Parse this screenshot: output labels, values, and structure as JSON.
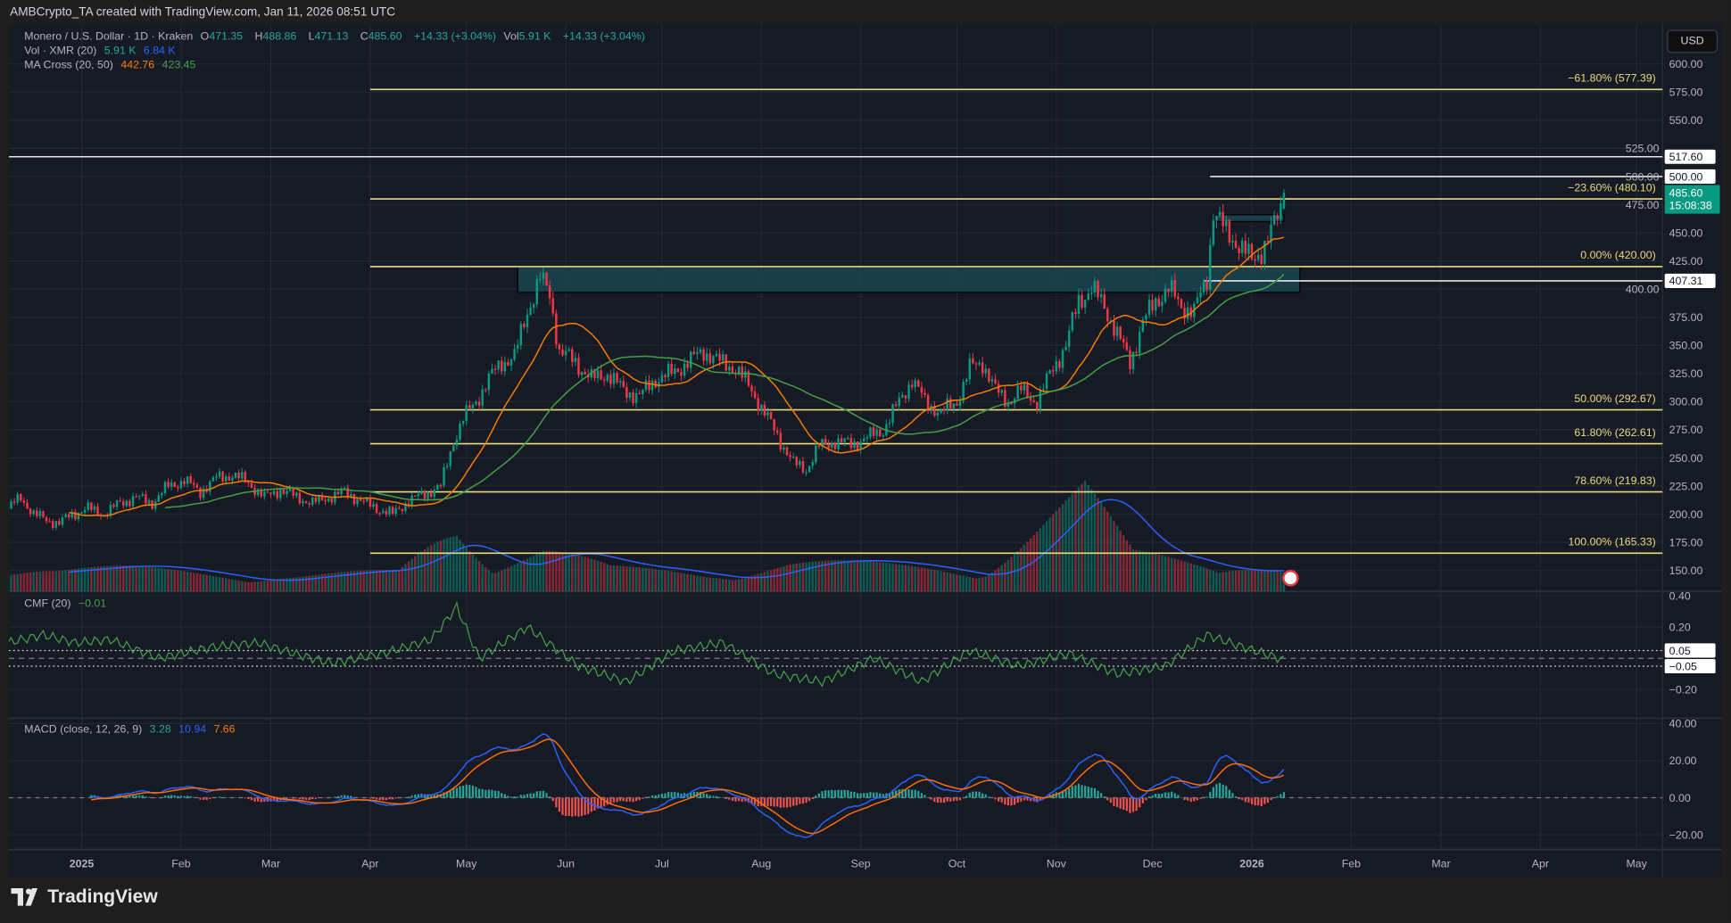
{
  "header": {
    "title": "AMBCrypto_TA created with TradingView.com, Jan 11, 2026 08:51 UTC"
  },
  "legend": {
    "symbol": "Monero / U.S. Dollar · 1D · Kraken",
    "o_label": "O",
    "o": "471.35",
    "h_label": "H",
    "h": "488.86",
    "l_label": "L",
    "l": "471.13",
    "c_label": "C",
    "c": "485.60",
    "change": "+14.33 (+3.04%)",
    "vol_label": "Vol",
    "vol": "5.91 K",
    "vol_change": "+14.33 (+3.04%)",
    "vol_ind": "Vol · XMR (20)",
    "vol_ind_v1": "5.91 K",
    "vol_ind_v2": "6.84 K",
    "ma": "MA Cross (20, 50)",
    "ma_v1": "442.76",
    "ma_v2": "423.45",
    "cmf": "CMF (20)",
    "cmf_v": "−0.01",
    "macd": "MACD (close, 12, 26, 9)",
    "macd_v1": "3.28",
    "macd_v2": "10.94",
    "macd_v3": "7.66"
  },
  "currency_button": "USD",
  "footer": {
    "brand": "TradingView"
  },
  "colors": {
    "up": "#089981",
    "down": "#f23645",
    "ma_fast": "#f57c00",
    "ma_slow": "#43a047",
    "vol_ma": "#2962ff",
    "fib": "#e9d97f",
    "zone": "#1b4a55",
    "cmf": "#43a047",
    "macd": "#2962ff",
    "signal": "#ff6d00",
    "hist_up": "#26a69a",
    "hist_down": "#ef5350"
  },
  "chart_data": {
    "type": "candlestick",
    "price_axis": {
      "range": [
        140,
        612
      ],
      "ticks": [
        "600.00",
        "575.00",
        "550.00",
        "525.00",
        "500.00",
        "475.00",
        "450.00",
        "425.00",
        "400.00",
        "375.00",
        "350.00",
        "325.00",
        "300.00",
        "275.00",
        "250.00",
        "225.00",
        "200.00",
        "175.00",
        "150.00"
      ]
    },
    "x_ticks": [
      {
        "label": "2025",
        "date": "2025-01-01",
        "bold": true
      },
      {
        "label": "Feb",
        "date": "2025-02-01"
      },
      {
        "label": "Mar",
        "date": "2025-03-01"
      },
      {
        "label": "Apr",
        "date": "2025-04-01"
      },
      {
        "label": "May",
        "date": "2025-05-01"
      },
      {
        "label": "Jun",
        "date": "2025-06-01"
      },
      {
        "label": "Jul",
        "date": "2025-07-01"
      },
      {
        "label": "Aug",
        "date": "2025-08-01"
      },
      {
        "label": "Sep",
        "date": "2025-09-01"
      },
      {
        "label": "Oct",
        "date": "2025-10-01"
      },
      {
        "label": "Nov",
        "date": "2025-11-01"
      },
      {
        "label": "Dec",
        "date": "2025-12-01"
      },
      {
        "label": "2026",
        "date": "2026-01-01",
        "bold": true
      },
      {
        "label": "Feb",
        "date": "2026-02-01"
      },
      {
        "label": "Mar",
        "date": "2026-03-01"
      },
      {
        "label": "Apr",
        "date": "2026-04-01"
      },
      {
        "label": "May",
        "date": "2026-05-01"
      }
    ],
    "close_path": [
      [
        "2024-12-09",
        205
      ],
      [
        "2024-12-13",
        215
      ],
      [
        "2024-12-17",
        200
      ],
      [
        "2024-12-21",
        195
      ],
      [
        "2024-12-25",
        192
      ],
      [
        "2024-12-29",
        200
      ],
      [
        "2025-01-03",
        205
      ],
      [
        "2025-01-08",
        200
      ],
      [
        "2025-01-13",
        210
      ],
      [
        "2025-01-18",
        215
      ],
      [
        "2025-01-23",
        210
      ],
      [
        "2025-01-28",
        225
      ],
      [
        "2025-02-02",
        230
      ],
      [
        "2025-02-07",
        220
      ],
      [
        "2025-02-12",
        232
      ],
      [
        "2025-02-17",
        235
      ],
      [
        "2025-02-22",
        228
      ],
      [
        "2025-02-27",
        215
      ],
      [
        "2025-03-04",
        222
      ],
      [
        "2025-03-09",
        215
      ],
      [
        "2025-03-14",
        210
      ],
      [
        "2025-03-19",
        215
      ],
      [
        "2025-03-24",
        220
      ],
      [
        "2025-03-29",
        212
      ],
      [
        "2025-04-03",
        205
      ],
      [
        "2025-04-08",
        200
      ],
      [
        "2025-04-13",
        212
      ],
      [
        "2025-04-18",
        218
      ],
      [
        "2025-04-23",
        225
      ],
      [
        "2025-04-27",
        265
      ],
      [
        "2025-04-30",
        285
      ],
      [
        "2025-05-04",
        300
      ],
      [
        "2025-05-08",
        320
      ],
      [
        "2025-05-12",
        335
      ],
      [
        "2025-05-16",
        340
      ],
      [
        "2025-05-20",
        380
      ],
      [
        "2025-05-24",
        410
      ],
      [
        "2025-05-27",
        395
      ],
      [
        "2025-05-30",
        345
      ],
      [
        "2025-06-04",
        335
      ],
      [
        "2025-06-09",
        320
      ],
      [
        "2025-06-14",
        325
      ],
      [
        "2025-06-19",
        310
      ],
      [
        "2025-06-24",
        305
      ],
      [
        "2025-06-29",
        320
      ],
      [
        "2025-07-04",
        325
      ],
      [
        "2025-07-09",
        335
      ],
      [
        "2025-07-14",
        345
      ],
      [
        "2025-07-19",
        335
      ],
      [
        "2025-07-24",
        330
      ],
      [
        "2025-07-29",
        310
      ],
      [
        "2025-08-03",
        285
      ],
      [
        "2025-08-07",
        265
      ],
      [
        "2025-08-11",
        245
      ],
      [
        "2025-08-15",
        240
      ],
      [
        "2025-08-19",
        260
      ],
      [
        "2025-08-24",
        265
      ],
      [
        "2025-08-29",
        262
      ],
      [
        "2025-09-03",
        268
      ],
      [
        "2025-09-08",
        275
      ],
      [
        "2025-09-13",
        300
      ],
      [
        "2025-09-17",
        320
      ],
      [
        "2025-09-21",
        300
      ],
      [
        "2025-09-26",
        290
      ],
      [
        "2025-10-01",
        300
      ],
      [
        "2025-10-05",
        330
      ],
      [
        "2025-10-09",
        335
      ],
      [
        "2025-10-13",
        310
      ],
      [
        "2025-10-17",
        300
      ],
      [
        "2025-10-21",
        310
      ],
      [
        "2025-10-26",
        300
      ],
      [
        "2025-10-31",
        330
      ],
      [
        "2025-11-04",
        350
      ],
      [
        "2025-11-08",
        390
      ],
      [
        "2025-11-12",
        400
      ],
      [
        "2025-11-16",
        385
      ],
      [
        "2025-11-20",
        360
      ],
      [
        "2025-11-24",
        335
      ],
      [
        "2025-11-28",
        370
      ],
      [
        "2025-12-02",
        390
      ],
      [
        "2025-12-06",
        400
      ],
      [
        "2025-12-10",
        385
      ],
      [
        "2025-12-14",
        380
      ],
      [
        "2025-12-18",
        410
      ],
      [
        "2025-12-20",
        470
      ],
      [
        "2025-12-24",
        450
      ],
      [
        "2025-12-28",
        440
      ],
      [
        "2026-01-01",
        425
      ],
      [
        "2026-01-04",
        435
      ],
      [
        "2026-01-07",
        450
      ],
      [
        "2026-01-10",
        471.35
      ],
      [
        "2026-01-11",
        485.6
      ]
    ],
    "last_candle": {
      "open": 471.35,
      "high": 488.86,
      "low": 471.13,
      "close": 485.6
    },
    "volume_path_k": [
      [
        "2024-12-09",
        10
      ],
      [
        "2024-12-25",
        7
      ],
      [
        "2025-01-15",
        7
      ],
      [
        "2025-02-10",
        6
      ],
      [
        "2025-03-10",
        5
      ],
      [
        "2025-04-10",
        6
      ],
      [
        "2025-04-28",
        22
      ],
      [
        "2025-05-10",
        11
      ],
      [
        "2025-05-25",
        14
      ],
      [
        "2025-06-15",
        7
      ],
      [
        "2025-07-15",
        6
      ],
      [
        "2025-08-10",
        9
      ],
      [
        "2025-09-10",
        8
      ],
      [
        "2025-10-10",
        8
      ],
      [
        "2025-11-10",
        30
      ],
      [
        "2025-11-25",
        12
      ],
      [
        "2025-12-20",
        12
      ],
      [
        "2026-01-11",
        6
      ]
    ],
    "volume_ma_k": "6.84",
    "cmf_path": [
      [
        "2024-12-09",
        0.1
      ],
      [
        "2024-12-20",
        0.15
      ],
      [
        "2024-12-30",
        0.1
      ],
      [
        "2025-01-10",
        0.12
      ],
      [
        "2025-01-25",
        0.0
      ],
      [
        "2025-02-10",
        0.07
      ],
      [
        "2025-02-25",
        0.1
      ],
      [
        "2025-03-10",
        0.02
      ],
      [
        "2025-03-20",
        -0.03
      ],
      [
        "2025-04-05",
        0.03
      ],
      [
        "2025-04-20",
        0.12
      ],
      [
        "2025-04-28",
        0.33
      ],
      [
        "2025-05-05",
        0.0
      ],
      [
        "2025-05-20",
        0.2
      ],
      [
        "2025-06-05",
        -0.05
      ],
      [
        "2025-06-20",
        -0.15
      ],
      [
        "2025-07-05",
        0.05
      ],
      [
        "2025-07-20",
        0.1
      ],
      [
        "2025-08-05",
        -0.1
      ],
      [
        "2025-08-20",
        -0.15
      ],
      [
        "2025-09-05",
        0.0
      ],
      [
        "2025-09-20",
        -0.15
      ],
      [
        "2025-10-05",
        0.05
      ],
      [
        "2025-10-20",
        -0.05
      ],
      [
        "2025-11-05",
        0.03
      ],
      [
        "2025-11-20",
        -0.1
      ],
      [
        "2025-12-05",
        -0.05
      ],
      [
        "2025-12-18",
        0.15
      ],
      [
        "2025-12-28",
        0.08
      ],
      [
        "2026-01-11",
        -0.01
      ]
    ],
    "cmf_axis": {
      "ticks": [
        "0.40",
        "0.20",
        "−0.20"
      ],
      "bands": [
        "0.05",
        "−0.05"
      ]
    },
    "macd_axis": {
      "ticks": [
        "40.00",
        "20.00",
        "0.00",
        "−20.00"
      ]
    },
    "fib_levels": [
      {
        "label": "−61.80% (577.39)",
        "price": 577.39
      },
      {
        "label": "−23.60% (480.10)",
        "price": 480.1
      },
      {
        "label": "0.00% (420.00)",
        "price": 420.0
      },
      {
        "label": "50.00% (292.67)",
        "price": 292.67
      },
      {
        "label": "61.80% (262.61)",
        "price": 262.61
      },
      {
        "label": "78.60% (219.83)",
        "price": 219.83
      },
      {
        "label": "100.00% (165.33)",
        "price": 165.33
      }
    ],
    "fib_start": "2025-04-01",
    "horizontal_lines": [
      {
        "label": "517.60",
        "price": 517.6,
        "start": "2024-12-01"
      },
      {
        "label": "500.00",
        "price": 500.0,
        "start": "2025-12-19"
      },
      {
        "label": "407.31",
        "price": 407.31,
        "start": "2025-12-17"
      }
    ],
    "zones": [
      {
        "from": "2025-05-17",
        "to": "2026-01-16",
        "low": 397,
        "high": 420
      },
      {
        "from": "2025-12-21",
        "to": "2026-01-11",
        "low": 460,
        "high": 466
      }
    ],
    "last_price": {
      "label": "485.60",
      "countdown": "15:08:38"
    }
  }
}
